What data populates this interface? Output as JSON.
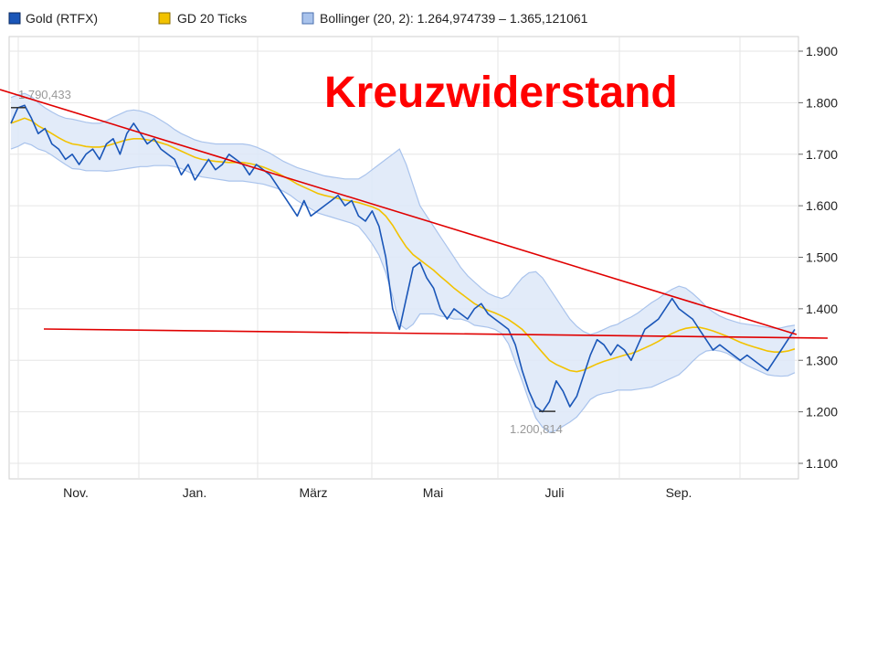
{
  "legend": [
    {
      "label": "Gold (RTFX)",
      "color": "#1a56b8"
    },
    {
      "label": "GD 20 Ticks",
      "color": "#f2c200"
    },
    {
      "label": "Bollinger (20, 2): 1.264,974739 – 1.365,121061",
      "color": "#a9c3ec"
    }
  ],
  "annotation": {
    "title": "Kreuzwiderstand",
    "color": "#ff0000"
  },
  "chart_data": {
    "type": "line",
    "ylim": [
      1050,
      1900
    ],
    "y_ticks": [
      {
        "v": 1900,
        "label": "1.900"
      },
      {
        "v": 1800,
        "label": "1.800"
      },
      {
        "v": 1700,
        "label": "1.700"
      },
      {
        "v": 1600,
        "label": "1.600"
      },
      {
        "v": 1500,
        "label": "1.500"
      },
      {
        "v": 1400,
        "label": "1.400"
      },
      {
        "v": 1300,
        "label": "1.300"
      },
      {
        "v": 1200,
        "label": "1.200"
      },
      {
        "v": 1100,
        "label": "1.100"
      }
    ],
    "x_ticks": [
      "Nov.",
      "Jan.",
      "März",
      "Mai",
      "Juli",
      "Sep."
    ],
    "grid": true,
    "extremes": [
      {
        "label": "1.790,433",
        "value": 1790.433
      },
      {
        "label": "1.200,814",
        "value": 1200.814
      }
    ],
    "series": [
      {
        "name": "Gold (RTFX)",
        "color": "#1a56b8",
        "values": [
          1760,
          1790,
          1795,
          1770,
          1740,
          1750,
          1720,
          1710,
          1690,
          1700,
          1680,
          1700,
          1710,
          1690,
          1720,
          1730,
          1700,
          1740,
          1760,
          1740,
          1720,
          1730,
          1710,
          1700,
          1690,
          1660,
          1680,
          1650,
          1670,
          1690,
          1670,
          1680,
          1700,
          1690,
          1680,
          1660,
          1680,
          1670,
          1660,
          1640,
          1620,
          1600,
          1580,
          1610,
          1580,
          1590,
          1600,
          1610,
          1620,
          1600,
          1610,
          1580,
          1570,
          1590,
          1560,
          1500,
          1400,
          1360,
          1420,
          1480,
          1490,
          1460,
          1440,
          1400,
          1380,
          1400,
          1390,
          1380,
          1400,
          1410,
          1390,
          1380,
          1370,
          1360,
          1330,
          1280,
          1240,
          1210,
          1200,
          1220,
          1260,
          1240,
          1210,
          1230,
          1270,
          1310,
          1340,
          1330,
          1310,
          1330,
          1320,
          1300,
          1330,
          1360,
          1370,
          1380,
          1400,
          1420,
          1400,
          1390,
          1380,
          1360,
          1340,
          1320,
          1330,
          1320,
          1310,
          1300,
          1310,
          1300,
          1290,
          1280,
          1300,
          1320,
          1340,
          1360
        ]
      },
      {
        "name": "GD 20 Ticks",
        "color": "#f2c200",
        "values": [
          1760,
          1765,
          1770,
          1765,
          1755,
          1748,
          1740,
          1732,
          1725,
          1720,
          1718,
          1715,
          1714,
          1714,
          1716,
          1720,
          1724,
          1728,
          1730,
          1730,
          1728,
          1726,
          1722,
          1718,
          1712,
          1706,
          1700,
          1694,
          1690,
          1688,
          1686,
          1685,
          1684,
          1684,
          1684,
          1682,
          1679,
          1675,
          1670,
          1664,
          1657,
          1650,
          1642,
          1636,
          1630,
          1624,
          1620,
          1617,
          1614,
          1611,
          1609,
          1606,
          1602,
          1598,
          1592,
          1580,
          1562,
          1540,
          1520,
          1505,
          1495,
          1485,
          1475,
          1463,
          1452,
          1440,
          1430,
          1420,
          1410,
          1403,
          1397,
          1392,
          1386,
          1379,
          1370,
          1360,
          1346,
          1330,
          1315,
          1300,
          1292,
          1286,
          1280,
          1278,
          1281,
          1287,
          1293,
          1298,
          1302,
          1306,
          1310,
          1313,
          1318,
          1324,
          1330,
          1337,
          1345,
          1352,
          1358,
          1362,
          1364,
          1364,
          1361,
          1357,
          1352,
          1347,
          1341,
          1335,
          1330,
          1326,
          1322,
          1318,
          1316,
          1316,
          1318,
          1322
        ]
      },
      {
        "name": "Bollinger (20, 2)",
        "color": "#a9c3ec",
        "upper": [
          1810,
          1815,
          1818,
          1812,
          1800,
          1790,
          1782,
          1775,
          1770,
          1768,
          1765,
          1762,
          1760,
          1760,
          1765,
          1772,
          1778,
          1784,
          1786,
          1784,
          1780,
          1774,
          1766,
          1758,
          1748,
          1740,
          1734,
          1728,
          1724,
          1722,
          1720,
          1720,
          1720,
          1720,
          1720,
          1718,
          1714,
          1708,
          1702,
          1694,
          1686,
          1680,
          1674,
          1670,
          1666,
          1662,
          1658,
          1656,
          1654,
          1652,
          1652,
          1652,
          1660,
          1670,
          1680,
          1690,
          1700,
          1710,
          1680,
          1640,
          1600,
          1580,
          1560,
          1540,
          1520,
          1500,
          1480,
          1464,
          1452,
          1440,
          1430,
          1424,
          1420,
          1426,
          1444,
          1460,
          1470,
          1472,
          1460,
          1440,
          1420,
          1400,
          1380,
          1366,
          1356,
          1350,
          1354,
          1360,
          1366,
          1370,
          1378,
          1384,
          1392,
          1402,
          1412,
          1420,
          1430,
          1438,
          1444,
          1440,
          1430,
          1418,
          1404,
          1394,
          1386,
          1380,
          1376,
          1372,
          1370,
          1368,
          1366,
          1364,
          1362,
          1363,
          1366,
          1368
        ],
        "lower": [
          1710,
          1715,
          1722,
          1718,
          1710,
          1706,
          1698,
          1689,
          1680,
          1672,
          1671,
          1668,
          1668,
          1668,
          1667,
          1668,
          1670,
          1672,
          1674,
          1676,
          1676,
          1678,
          1678,
          1678,
          1676,
          1672,
          1666,
          1660,
          1656,
          1654,
          1652,
          1650,
          1648,
          1648,
          1648,
          1646,
          1644,
          1642,
          1638,
          1634,
          1628,
          1620,
          1610,
          1602,
          1594,
          1586,
          1582,
          1578,
          1574,
          1570,
          1566,
          1560,
          1544,
          1526,
          1504,
          1470,
          1424,
          1370,
          1360,
          1370,
          1390,
          1390,
          1390,
          1386,
          1384,
          1380,
          1380,
          1376,
          1368,
          1366,
          1364,
          1360,
          1352,
          1332,
          1296,
          1260,
          1222,
          1188,
          1170,
          1160,
          1164,
          1172,
          1180,
          1190,
          1206,
          1224,
          1232,
          1236,
          1238,
          1242,
          1242,
          1242,
          1244,
          1246,
          1248,
          1254,
          1260,
          1266,
          1272,
          1284,
          1298,
          1310,
          1318,
          1320,
          1318,
          1314,
          1306,
          1298,
          1290,
          1284,
          1278,
          1272,
          1270,
          1269,
          1270,
          1276
        ]
      }
    ]
  }
}
